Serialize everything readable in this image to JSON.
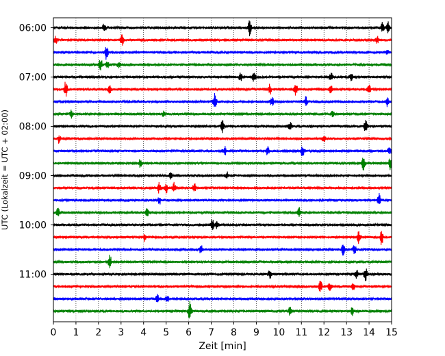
{
  "chart_data": {
    "type": "line",
    "subtype": "helicorder",
    "xlabel": "Zeit  [min]",
    "ylabel": "UTC (Lokalzeit = UTC + 02:00)",
    "xlim": [
      0,
      15
    ],
    "x_ticks": [
      "0",
      "1",
      "2",
      "3",
      "4",
      "5",
      "6",
      "7",
      "8",
      "9",
      "10",
      "11",
      "12",
      "13",
      "14",
      "15"
    ],
    "y_ticks": [
      "06:00",
      "07:00",
      "08:00",
      "09:00",
      "10:00",
      "11:00"
    ],
    "grid": {
      "x": "dotted vertical lines at each minute",
      "y": "none"
    },
    "trace_minutes": 15,
    "trace_colors_cycle": [
      "#000000",
      "#ff0000",
      "#0000ff",
      "#008000"
    ],
    "traces": [
      {
        "start": "06:00",
        "color": "#000000",
        "events": [
          [
            2.25,
            7
          ],
          [
            8.7,
            12
          ],
          [
            14.6,
            9
          ],
          [
            14.85,
            8
          ]
        ]
      },
      {
        "start": "06:15",
        "color": "#ff0000",
        "events": [
          [
            0.1,
            5
          ],
          [
            3.05,
            8
          ],
          [
            14.35,
            6
          ]
        ]
      },
      {
        "start": "06:30",
        "color": "#0000ff",
        "events": [
          [
            2.35,
            10
          ],
          [
            14.8,
            4
          ]
        ]
      },
      {
        "start": "06:45",
        "color": "#008000",
        "events": [
          [
            2.1,
            9
          ],
          [
            2.4,
            6
          ],
          [
            2.9,
            5
          ]
        ]
      },
      {
        "start": "07:00",
        "color": "#000000",
        "events": [
          [
            8.3,
            6
          ],
          [
            8.9,
            8
          ],
          [
            12.3,
            7
          ],
          [
            13.2,
            5
          ]
        ]
      },
      {
        "start": "07:15",
        "color": "#ff0000",
        "events": [
          [
            0.55,
            12
          ],
          [
            2.5,
            5
          ],
          [
            9.6,
            8
          ],
          [
            10.75,
            9
          ],
          [
            12.3,
            7
          ],
          [
            14.0,
            6
          ]
        ]
      },
      {
        "start": "07:30",
        "color": "#0000ff",
        "events": [
          [
            7.15,
            16
          ],
          [
            9.7,
            8
          ],
          [
            11.2,
            7
          ],
          [
            14.8,
            6
          ]
        ]
      },
      {
        "start": "07:45",
        "color": "#008000",
        "events": [
          [
            0.8,
            6
          ],
          [
            4.9,
            5
          ],
          [
            12.4,
            5
          ]
        ]
      },
      {
        "start": "08:00",
        "color": "#000000",
        "events": [
          [
            7.5,
            9
          ],
          [
            10.5,
            6
          ],
          [
            13.85,
            10
          ]
        ]
      },
      {
        "start": "08:15",
        "color": "#ff0000",
        "events": [
          [
            0.25,
            6
          ],
          [
            12.0,
            5
          ]
        ]
      },
      {
        "start": "08:30",
        "color": "#0000ff",
        "events": [
          [
            7.6,
            6
          ],
          [
            9.5,
            6
          ],
          [
            11.05,
            9
          ],
          [
            14.9,
            5
          ]
        ]
      },
      {
        "start": "08:45",
        "color": "#008000",
        "events": [
          [
            3.85,
            6
          ],
          [
            13.75,
            9
          ],
          [
            14.95,
            10
          ]
        ]
      },
      {
        "start": "09:00",
        "color": "#000000",
        "events": [
          [
            5.2,
            5
          ],
          [
            7.7,
            5
          ]
        ]
      },
      {
        "start": "09:15",
        "color": "#ff0000",
        "events": [
          [
            4.7,
            8
          ],
          [
            5.0,
            7
          ],
          [
            5.35,
            8
          ],
          [
            6.25,
            7
          ]
        ]
      },
      {
        "start": "09:30",
        "color": "#0000ff",
        "events": [
          [
            4.7,
            6
          ],
          [
            14.45,
            10
          ]
        ]
      },
      {
        "start": "09:45",
        "color": "#008000",
        "events": [
          [
            0.2,
            7
          ],
          [
            4.15,
            8
          ],
          [
            10.9,
            7
          ]
        ]
      },
      {
        "start": "10:00",
        "color": "#000000",
        "events": [
          [
            7.05,
            9
          ],
          [
            7.25,
            6
          ]
        ]
      },
      {
        "start": "10:15",
        "color": "#ff0000",
        "events": [
          [
            4.05,
            6
          ],
          [
            13.55,
            9
          ],
          [
            14.55,
            11
          ]
        ]
      },
      {
        "start": "10:30",
        "color": "#0000ff",
        "events": [
          [
            6.55,
            7
          ],
          [
            12.85,
            8
          ],
          [
            13.35,
            8
          ]
        ]
      },
      {
        "start": "10:45",
        "color": "#008000",
        "events": [
          [
            2.5,
            11
          ]
        ]
      },
      {
        "start": "11:00",
        "color": "#000000",
        "events": [
          [
            9.6,
            7
          ],
          [
            13.45,
            6
          ],
          [
            13.85,
            10
          ]
        ]
      },
      {
        "start": "11:15",
        "color": "#ff0000",
        "events": [
          [
            11.85,
            9
          ],
          [
            12.25,
            6
          ],
          [
            13.3,
            5
          ]
        ]
      },
      {
        "start": "11:30",
        "color": "#0000ff",
        "events": [
          [
            4.6,
            6
          ],
          [
            5.05,
            5
          ]
        ]
      },
      {
        "start": "11:45",
        "color": "#008000",
        "events": [
          [
            6.05,
            14
          ],
          [
            10.5,
            8
          ],
          [
            13.25,
            6
          ]
        ]
      }
    ]
  }
}
